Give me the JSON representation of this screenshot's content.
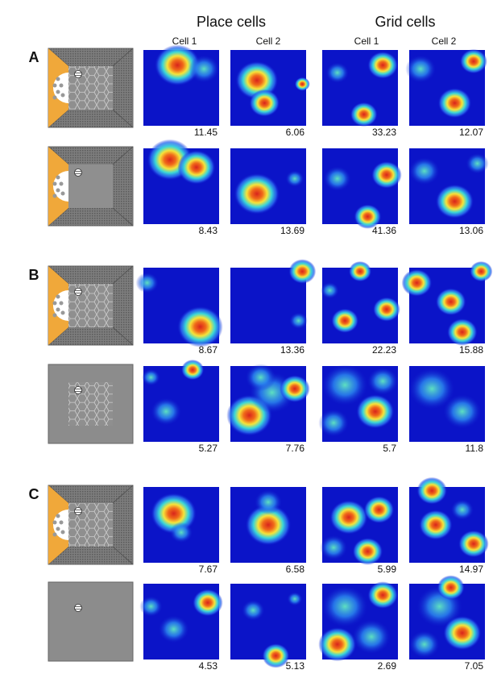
{
  "header": {
    "place_cells": "Place cells",
    "grid_cells": "Grid cells",
    "cell_labels": [
      "Cell 1",
      "Cell 2",
      "Cell 1",
      "Cell 2"
    ]
  },
  "panels": [
    {
      "label": "A",
      "rows": [
        {
          "peak_rates": [
            11.45,
            6.06,
            33.23,
            12.07
          ]
        },
        {
          "peak_rates": [
            8.43,
            13.69,
            41.36,
            13.06
          ]
        }
      ]
    },
    {
      "label": "B",
      "rows": [
        {
          "peak_rates": [
            8.67,
            13.36,
            22.23,
            15.88
          ]
        },
        {
          "peak_rates": [
            5.27,
            7.76,
            5.7,
            11.8
          ]
        }
      ]
    },
    {
      "label": "C",
      "rows": [
        {
          "peak_rates": [
            7.67,
            6.58,
            5.99,
            14.97
          ]
        },
        {
          "peak_rates": [
            4.53,
            5.13,
            2.69,
            7.05
          ]
        }
      ]
    }
  ]
}
